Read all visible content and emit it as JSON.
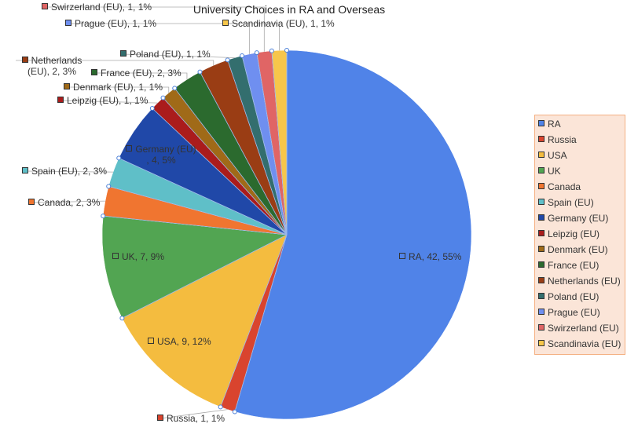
{
  "chart_data": {
    "type": "pie",
    "title": "University Choices in RA and Overseas",
    "categories": [
      "RA",
      "Russia",
      "USA",
      "UK",
      "Canada",
      "Spain (EU)",
      "Germany (EU)",
      "Leipzig (EU)",
      "Denmark (EU)",
      "France (EU)",
      "Netherlands (EU)",
      "Poland (EU)",
      "Prague (EU)",
      "Swirzerland (EU)",
      "Scandinavia (EU)"
    ],
    "values": [
      42,
      1,
      9,
      7,
      2,
      2,
      4,
      1,
      1,
      2,
      2,
      1,
      1,
      1,
      1
    ],
    "value_labels": [
      "RA, 42, 55%",
      "Russia, 1, 1%",
      "USA, 9, 12%",
      "UK, 7, 9%",
      "Canada, 2, 3%",
      "Spain (EU), 2, 3%",
      "Germany (EU) , 4, 5%",
      "Leipzig (EU), 1, 1%",
      "Denmark (EU), 1, 1%",
      "France (EU), 2, 3%",
      "Netherlands (EU), 2, 3%",
      "Poland (EU), 1, 1%",
      "Prague (EU), 1, 1%",
      "Swirzerland (EU), 1, 1%",
      "Scandinavia (EU), 1, 1%"
    ],
    "colors": [
      "#5083e8",
      "#d9442e",
      "#f4bc3f",
      "#52a552",
      "#f07530",
      "#5fbfc8",
      "#2048a8",
      "#aa1c1c",
      "#a06a18",
      "#2b6a2e",
      "#9a3d14",
      "#336e6e",
      "#6f8ff0",
      "#e06565",
      "#f7c64a"
    ],
    "legend": "right"
  }
}
